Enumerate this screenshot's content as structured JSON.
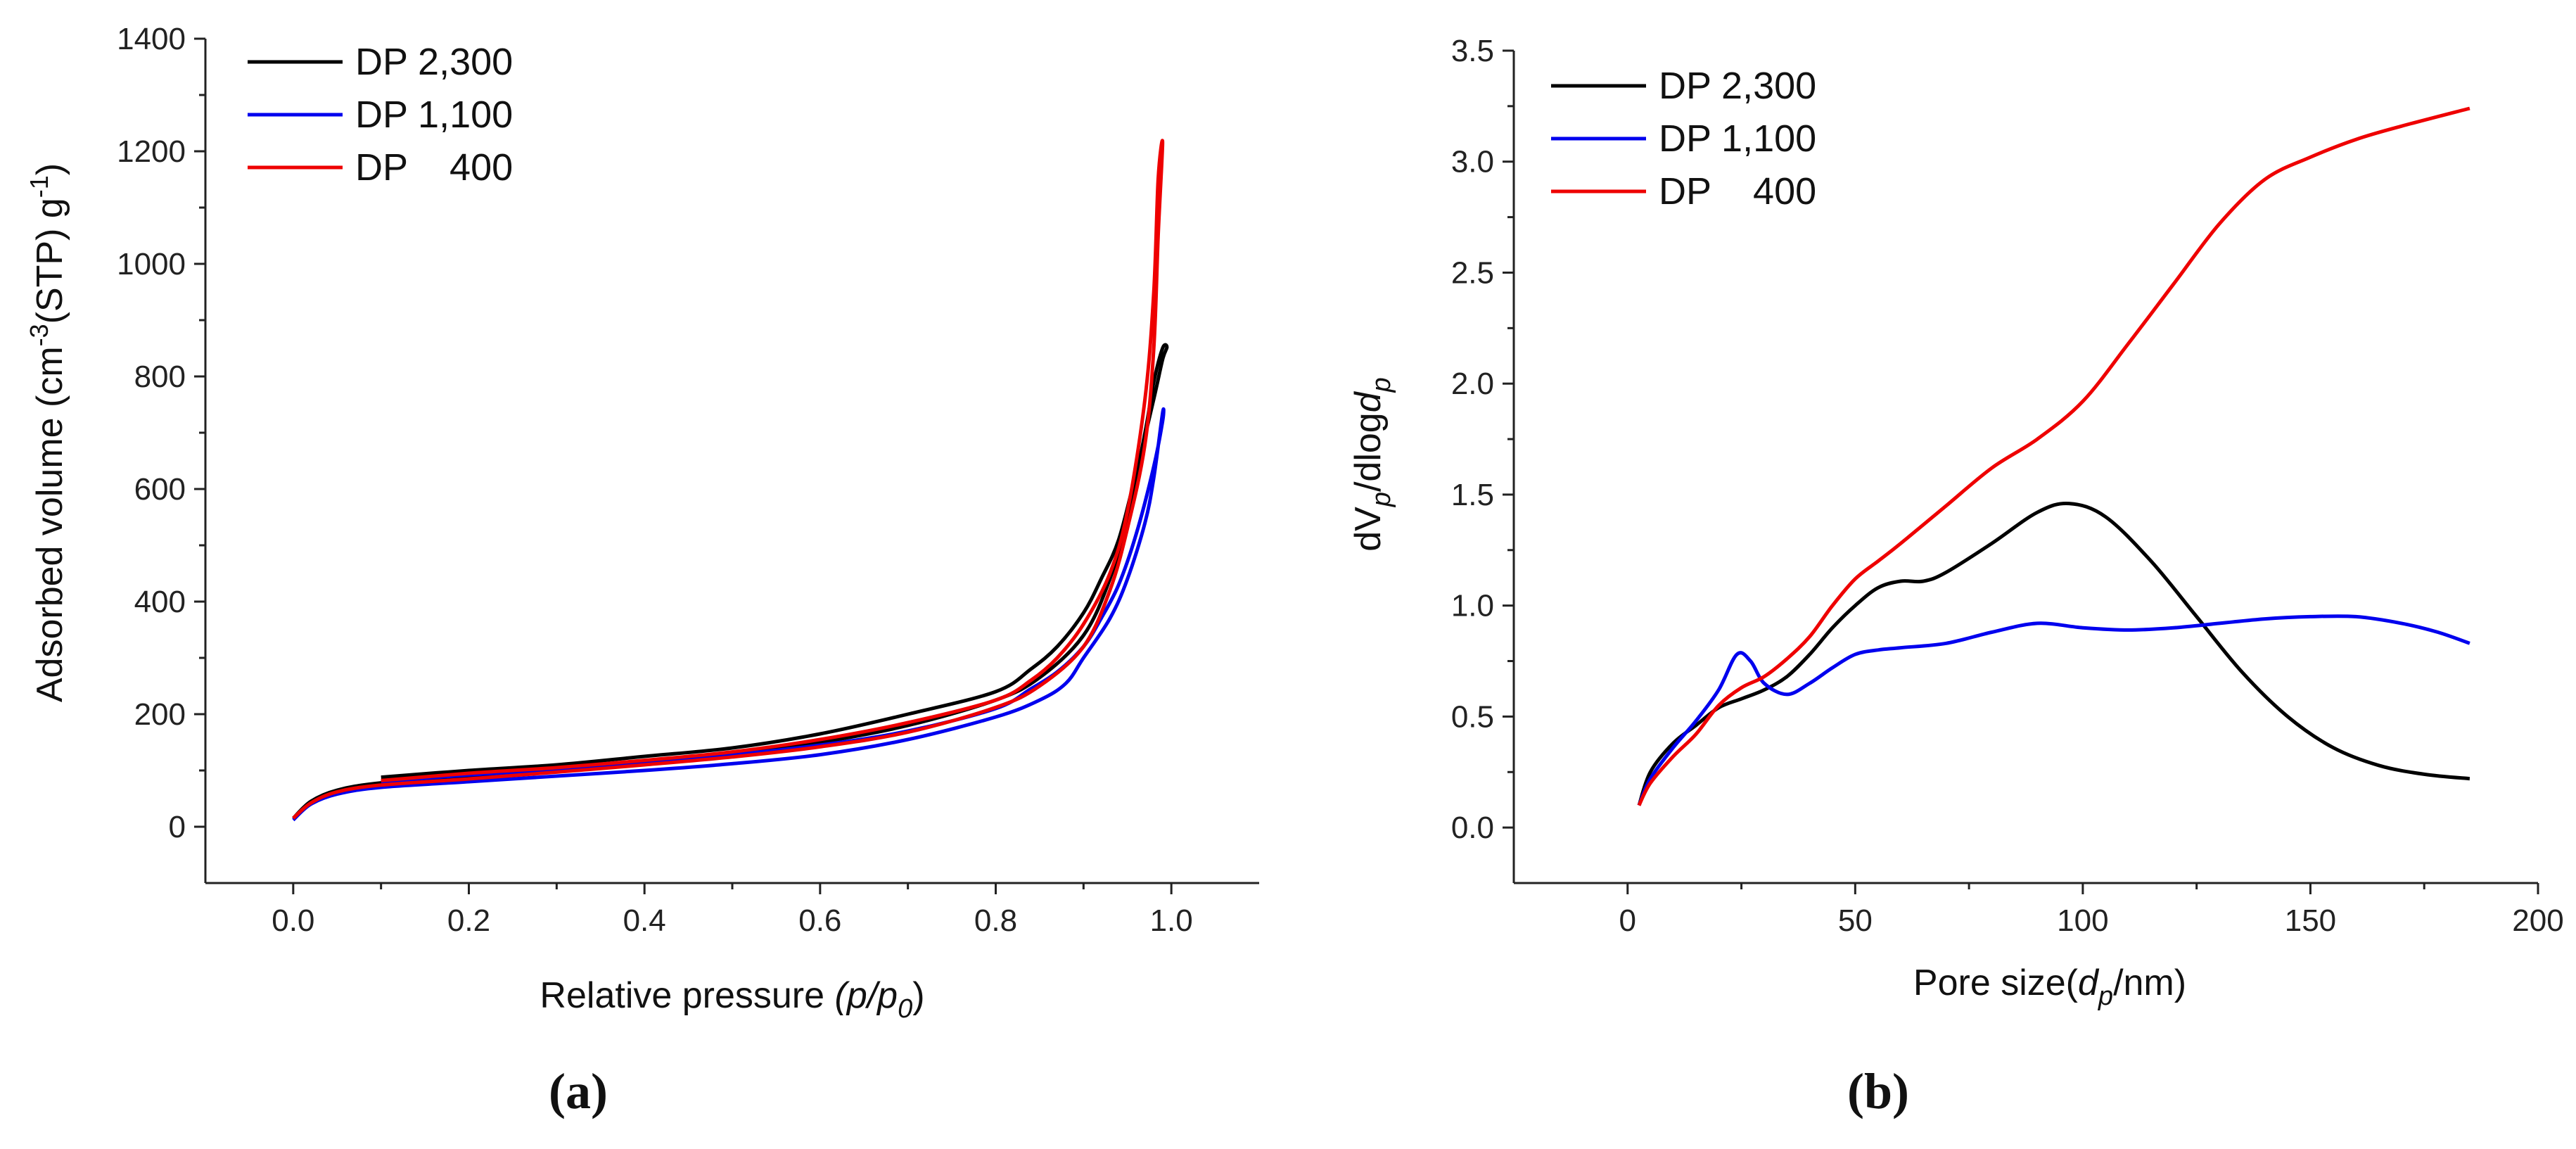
{
  "chart_data": [
    {
      "type": "line",
      "panel_label": "(a)",
      "xlabel": "Relative pressure",
      "xlabel_var": "(p/p",
      "xlabel_sub": "0",
      "xlabel_close": ")",
      "ylabel": "Adsorbed volume (cm",
      "ylabel_sup": "-3",
      "ylabel_mid": "(STP) g",
      "ylabel_sup2": "-1",
      "ylabel_end": ")",
      "xlim": [
        -0.1,
        1.1
      ],
      "ylim": [
        -100,
        1400
      ],
      "xticks": [
        0.0,
        0.2,
        0.4,
        0.6,
        0.8,
        1.0
      ],
      "xtick_labels": [
        "0.0",
        "0.2",
        "0.4",
        "0.6",
        "0.8",
        "1.0"
      ],
      "yticks": [
        0,
        200,
        400,
        600,
        800,
        1000,
        1200,
        1400
      ],
      "ytick_labels": [
        "0",
        "200",
        "400",
        "600",
        "800",
        "1000",
        "1200",
        "1400"
      ],
      "legend": [
        "DP 2,300",
        "DP 1,100",
        "DP    400"
      ],
      "series": [
        {
          "name": "DP 2,300",
          "color": "#000000",
          "x": [
            0.0,
            0.02,
            0.05,
            0.1,
            0.2,
            0.3,
            0.4,
            0.5,
            0.6,
            0.7,
            0.8,
            0.85,
            0.9,
            0.93,
            0.95,
            0.97,
            0.98,
            0.99,
            0.995,
            0.99,
            0.98,
            0.96,
            0.94,
            0.92,
            0.9,
            0.87,
            0.84,
            0.8,
            0.7,
            0.6,
            0.5,
            0.4,
            0.3,
            0.2,
            0.1
          ],
          "y": [
            15,
            45,
            65,
            78,
            90,
            102,
            115,
            130,
            150,
            180,
            225,
            265,
            340,
            440,
            550,
            700,
            790,
            850,
            852,
            830,
            760,
            630,
            510,
            440,
            380,
            320,
            280,
            240,
            200,
            165,
            140,
            125,
            110,
            100,
            88
          ]
        },
        {
          "name": "DP 1,100",
          "color": "#0000ee",
          "x": [
            0.0,
            0.02,
            0.05,
            0.1,
            0.2,
            0.3,
            0.4,
            0.5,
            0.6,
            0.7,
            0.8,
            0.85,
            0.88,
            0.9,
            0.93,
            0.95,
            0.97,
            0.98,
            0.99,
            0.99,
            0.98,
            0.96,
            0.94,
            0.92,
            0.9,
            0.87,
            0.84,
            0.8,
            0.7,
            0.6,
            0.5,
            0.4,
            0.3,
            0.2,
            0.1
          ],
          "y": [
            12,
            40,
            58,
            70,
            80,
            90,
            100,
            112,
            128,
            155,
            195,
            225,
            255,
            300,
            370,
            440,
            540,
            620,
            735,
            720,
            640,
            520,
            430,
            370,
            320,
            275,
            245,
            210,
            170,
            145,
            128,
            115,
            102,
            92,
            80
          ]
        },
        {
          "name": "DP    400",
          "color": "#ee0000",
          "x": [
            0.0,
            0.02,
            0.05,
            0.1,
            0.2,
            0.3,
            0.4,
            0.5,
            0.6,
            0.7,
            0.8,
            0.85,
            0.9,
            0.93,
            0.95,
            0.97,
            0.98,
            0.985,
            0.99,
            0.985,
            0.98,
            0.97,
            0.95,
            0.93,
            0.9,
            0.87,
            0.84,
            0.8,
            0.7,
            0.6,
            0.5,
            0.4,
            0.3,
            0.2,
            0.1
          ],
          "y": [
            15,
            42,
            62,
            74,
            85,
            97,
            110,
            124,
            142,
            168,
            212,
            250,
            320,
            420,
            530,
            680,
            850,
            1050,
            1215,
            1150,
            950,
            760,
            560,
            450,
            360,
            300,
            260,
            225,
            185,
            155,
            133,
            118,
            105,
            95,
            82
          ]
        }
      ]
    },
    {
      "type": "line",
      "panel_label": "(b)",
      "xlabel": "Pore size(",
      "xlabel_var": "d",
      "xlabel_sub": "p",
      "xlabel_close": "/nm)",
      "ylabel": "dV",
      "ylabel_sub": "p",
      "ylabel_mid": "/dlog",
      "ylabel_var": "d",
      "ylabel_sub2": "p",
      "xlim": [
        -25,
        200
      ],
      "ylim": [
        -0.25,
        3.5
      ],
      "xticks": [
        0,
        50,
        100,
        150,
        200
      ],
      "xtick_labels": [
        "0",
        "50",
        "100",
        "150",
        "200"
      ],
      "yticks": [
        0.0,
        0.5,
        1.0,
        1.5,
        2.0,
        2.5,
        3.0,
        3.5
      ],
      "ytick_labels": [
        "0.0",
        "0.5",
        "1.0",
        "1.5",
        "2.0",
        "2.5",
        "3.0",
        "3.5"
      ],
      "legend": [
        "DP 2,300",
        "DP 1,100",
        "DP    400"
      ],
      "series": [
        {
          "name": "DP 2,300",
          "color": "#000000",
          "x": [
            2.5,
            5,
            10,
            15,
            20,
            25,
            30,
            35,
            40,
            45,
            50,
            55,
            60,
            65,
            70,
            80,
            90,
            97,
            105,
            115,
            125,
            135,
            145,
            155,
            165,
            175,
            185
          ],
          "y": [
            0.1,
            0.25,
            0.38,
            0.46,
            0.54,
            0.58,
            0.62,
            0.68,
            0.78,
            0.9,
            1.0,
            1.08,
            1.11,
            1.11,
            1.15,
            1.28,
            1.42,
            1.46,
            1.4,
            1.2,
            0.95,
            0.7,
            0.5,
            0.36,
            0.28,
            0.24,
            0.22
          ]
        },
        {
          "name": "DP 1,100",
          "color": "#0000ee",
          "x": [
            2.5,
            5,
            10,
            15,
            20,
            24,
            27,
            30,
            35,
            40,
            45,
            50,
            55,
            60,
            70,
            80,
            90,
            100,
            110,
            120,
            130,
            140,
            150,
            160,
            170,
            178,
            185
          ],
          "y": [
            0.1,
            0.22,
            0.36,
            0.48,
            0.62,
            0.78,
            0.75,
            0.65,
            0.6,
            0.65,
            0.72,
            0.78,
            0.8,
            0.81,
            0.83,
            0.88,
            0.92,
            0.9,
            0.89,
            0.9,
            0.92,
            0.94,
            0.95,
            0.95,
            0.92,
            0.88,
            0.83
          ]
        },
        {
          "name": "DP    400",
          "color": "#ee0000",
          "x": [
            2.5,
            5,
            10,
            15,
            20,
            25,
            30,
            35,
            40,
            45,
            50,
            55,
            60,
            70,
            80,
            90,
            100,
            110,
            120,
            130,
            140,
            150,
            160,
            170,
            185
          ],
          "y": [
            0.1,
            0.2,
            0.32,
            0.42,
            0.55,
            0.63,
            0.68,
            0.76,
            0.86,
            1.0,
            1.12,
            1.2,
            1.28,
            1.45,
            1.62,
            1.75,
            1.92,
            2.18,
            2.45,
            2.72,
            2.92,
            3.02,
            3.1,
            3.16,
            3.24
          ]
        }
      ]
    }
  ]
}
